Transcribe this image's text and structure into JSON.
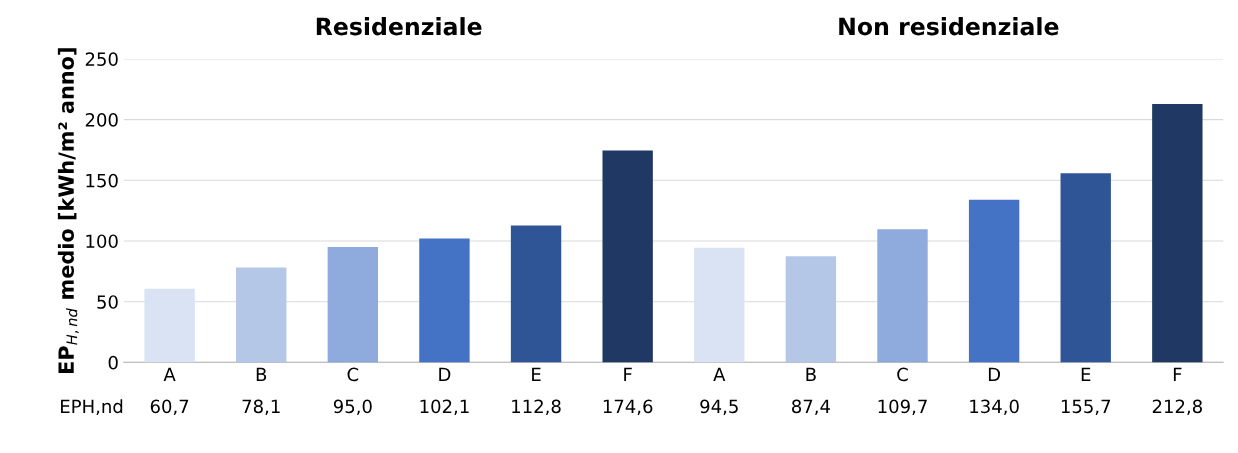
{
  "chart_data": {
    "type": "bar",
    "ylabel": "EP$_{H,nd}$ medio [kWh/m² anno]",
    "categories": [
      "A",
      "B",
      "C",
      "D",
      "E",
      "F",
      "A",
      "B",
      "C",
      "D",
      "E",
      "F"
    ],
    "values": [
      60.7,
      78.1,
      95.0,
      102.1,
      112.8,
      174.6,
      94.5,
      87.4,
      109.7,
      134.0,
      155.7,
      212.8
    ],
    "value_labels": [
      "60,7",
      "78,1",
      "95,0",
      "102,1",
      "112,8",
      "174,6",
      "94,5",
      "87,4",
      "109,7",
      "134,0",
      "155,7",
      "212,8"
    ],
    "colors": [
      "#dae3f3",
      "#b4c7e7",
      "#8faadc",
      "#4472c4",
      "#2f5597",
      "#203864",
      "#dae3f3",
      "#b4c7e7",
      "#8faadc",
      "#4472c4",
      "#2f5597",
      "#203864"
    ],
    "ylim": [
      0,
      250
    ],
    "yticks": [
      0,
      50,
      100,
      150,
      200,
      250
    ],
    "grid": "y",
    "annotations": [
      "Residenziale",
      "Non residenziale",
      "EPH,nd"
    ]
  }
}
